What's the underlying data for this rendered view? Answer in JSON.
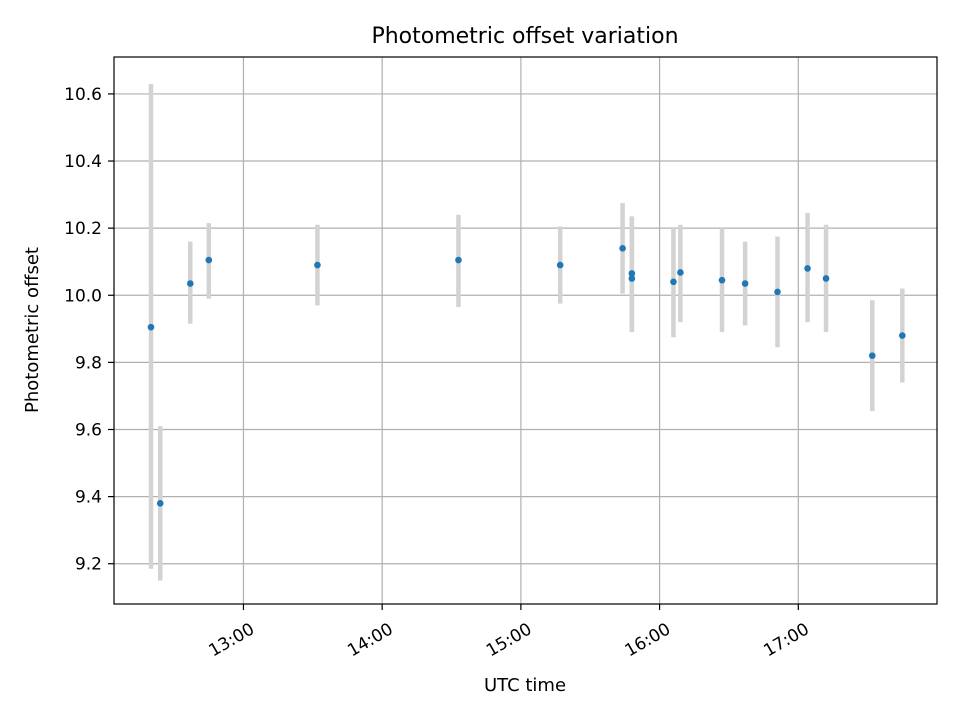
{
  "chart_data": {
    "type": "scatter",
    "title": "Photometric offset variation",
    "xlabel": "UTC time",
    "ylabel": "Photometric offset",
    "xlim": [
      "12:04",
      "18:00"
    ],
    "ylim": [
      9.08,
      10.71
    ],
    "xticks": [
      "13:00",
      "14:00",
      "15:00",
      "16:00",
      "17:00"
    ],
    "yticks": [
      9.2,
      9.4,
      9.6,
      9.8,
      10.0,
      10.2,
      10.4,
      10.6
    ],
    "grid": true,
    "colors": {
      "marker": "#1f77b4",
      "errorbar": "#d3d3d3",
      "grid": "#b0b0b0"
    },
    "points": [
      {
        "x": "12:20",
        "y": 9.905,
        "err_low": 9.185,
        "err_high": 10.63
      },
      {
        "x": "12:24",
        "y": 9.38,
        "err_low": 9.15,
        "err_high": 9.61
      },
      {
        "x": "12:37",
        "y": 10.035,
        "err_low": 9.915,
        "err_high": 10.16
      },
      {
        "x": "12:45",
        "y": 10.105,
        "err_low": 9.99,
        "err_high": 10.215
      },
      {
        "x": "13:32",
        "y": 10.09,
        "err_low": 9.97,
        "err_high": 10.21
      },
      {
        "x": "14:33",
        "y": 10.105,
        "err_low": 9.965,
        "err_high": 10.24
      },
      {
        "x": "15:17",
        "y": 10.09,
        "err_low": 9.975,
        "err_high": 10.205
      },
      {
        "x": "15:44",
        "y": 10.14,
        "err_low": 10.005,
        "err_high": 10.275
      },
      {
        "x": "15:48",
        "y": 10.05,
        "err_low": 9.89,
        "err_high": 10.235
      },
      {
        "x": "15:48",
        "y": 10.065,
        "err_low": 9.89,
        "err_high": 10.235
      },
      {
        "x": "16:06",
        "y": 10.04,
        "err_low": 9.875,
        "err_high": 10.2
      },
      {
        "x": "16:09",
        "y": 10.068,
        "err_low": 9.92,
        "err_high": 10.21
      },
      {
        "x": "16:27",
        "y": 10.045,
        "err_low": 9.89,
        "err_high": 10.2
      },
      {
        "x": "16:37",
        "y": 10.035,
        "err_low": 9.91,
        "err_high": 10.16
      },
      {
        "x": "16:51",
        "y": 10.01,
        "err_low": 9.845,
        "err_high": 10.175
      },
      {
        "x": "17:04",
        "y": 10.08,
        "err_low": 9.92,
        "err_high": 10.245
      },
      {
        "x": "17:12",
        "y": 10.05,
        "err_low": 9.89,
        "err_high": 10.21
      },
      {
        "x": "17:32",
        "y": 9.82,
        "err_low": 9.655,
        "err_high": 9.985
      },
      {
        "x": "17:45",
        "y": 9.88,
        "err_low": 9.74,
        "err_high": 10.02
      }
    ]
  }
}
